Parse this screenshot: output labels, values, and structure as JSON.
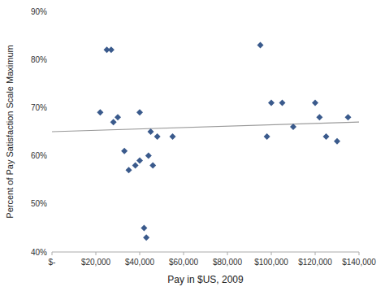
{
  "chart_data": {
    "type": "scatter",
    "xlabel": "Pay in $US, 2009",
    "ylabel": "Percent of Pay Satisfaction Scale Maximum",
    "series": [
      {
        "type": "scatter",
        "color": "#3A5A8C",
        "marker": "diamond",
        "x": [
          22000,
          25000,
          27000,
          28000,
          30000,
          33000,
          35000,
          38000,
          40000,
          40000,
          42000,
          43000,
          44000,
          45000,
          46000,
          48000,
          55000,
          95000,
          98000,
          100000,
          105000,
          110000,
          120000,
          122000,
          125000,
          130000,
          135000
        ],
        "values": [
          69,
          82,
          82,
          67,
          68,
          61,
          57,
          58,
          59,
          69,
          45,
          43,
          60,
          65,
          58,
          64,
          64,
          83,
          64,
          71,
          71,
          66,
          71,
          68,
          64,
          63,
          68
        ]
      },
      {
        "type": "line",
        "color": "#999999",
        "line_style": "solid",
        "x": [
          0,
          140000
        ],
        "values": [
          65.0,
          67.0
        ]
      }
    ],
    "xlim": [
      0,
      140000
    ],
    "ylim": [
      40,
      90
    ],
    "xticks": [
      {
        "value": 0,
        "label": "$-"
      },
      {
        "value": 20000,
        "label": "$20,000"
      },
      {
        "value": 40000,
        "label": "$40,000"
      },
      {
        "value": 60000,
        "label": "$60,000"
      },
      {
        "value": 80000,
        "label": "$80,000"
      },
      {
        "value": 100000,
        "label": "$100,000"
      },
      {
        "value": 120000,
        "label": "$120,000"
      },
      {
        "value": 140000,
        "label": "$140,000"
      }
    ],
    "yticks": [
      {
        "value": 40,
        "label": "40%"
      },
      {
        "value": 50,
        "label": "50%"
      },
      {
        "value": 60,
        "label": "60%"
      },
      {
        "value": 70,
        "label": "70%"
      },
      {
        "value": 80,
        "label": "80%"
      },
      {
        "value": 90,
        "label": "90%"
      }
    ],
    "grid": false
  }
}
